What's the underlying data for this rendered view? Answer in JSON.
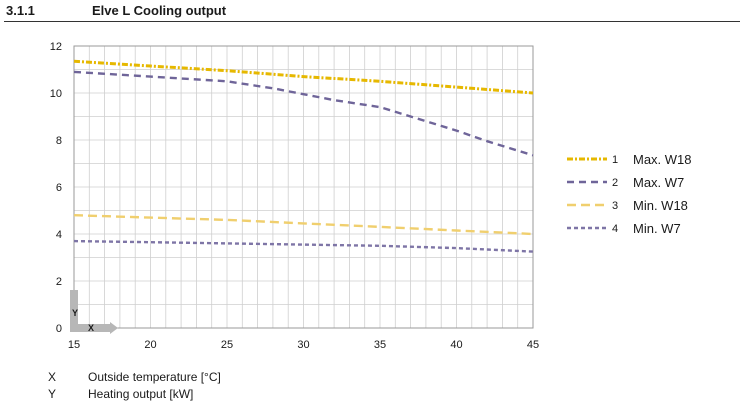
{
  "header": {
    "section_number": "3.1.1",
    "title": "Elve L Cooling output"
  },
  "chart_data": {
    "type": "line",
    "title": "Elve L Cooling output",
    "xlabel": "X",
    "ylabel": "Y",
    "xlim": [
      15,
      45
    ],
    "ylim": [
      0,
      12
    ],
    "x_ticks": [
      15,
      20,
      25,
      30,
      35,
      40,
      45
    ],
    "y_ticks": [
      0,
      2,
      4,
      6,
      8,
      10,
      12
    ],
    "grid": true,
    "legend_position": "right",
    "series": [
      {
        "name": "Max. W18",
        "number": "1",
        "color": "#e6b800",
        "dash": "6,2,2,2",
        "width": 3,
        "x": [
          15,
          20,
          25,
          30,
          35,
          40,
          45
        ],
        "y": [
          11.35,
          11.15,
          10.95,
          10.7,
          10.5,
          10.25,
          10.0
        ]
      },
      {
        "name": "Max. W7",
        "number": "2",
        "color": "#6f6599",
        "dash": "7,5",
        "width": 2.4,
        "x": [
          15,
          20,
          25,
          28,
          32,
          35,
          37,
          40,
          42,
          45
        ],
        "y": [
          10.9,
          10.7,
          10.5,
          10.2,
          9.7,
          9.4,
          9.0,
          8.4,
          7.95,
          7.35
        ]
      },
      {
        "name": "Min. W18",
        "number": "3",
        "color": "#f0cf6e",
        "dash": "9,5",
        "width": 2.4,
        "x": [
          15,
          20,
          25,
          30,
          35,
          40,
          45
        ],
        "y": [
          4.8,
          4.7,
          4.6,
          4.45,
          4.3,
          4.15,
          4.0
        ]
      },
      {
        "name": "Min. W7",
        "number": "4",
        "color": "#7e75a6",
        "dash": "4,3",
        "width": 2.4,
        "x": [
          15,
          20,
          25,
          30,
          35,
          40,
          45
        ],
        "y": [
          3.7,
          3.65,
          3.6,
          3.55,
          3.5,
          3.4,
          3.25
        ]
      }
    ],
    "axis_corner": {
      "x_label": "X",
      "y_label": "Y"
    }
  },
  "footer": {
    "rows": [
      {
        "key": "X",
        "text": "Outside temperature [°C]"
      },
      {
        "key": "Y",
        "text": "Heating output [kW]"
      }
    ]
  }
}
